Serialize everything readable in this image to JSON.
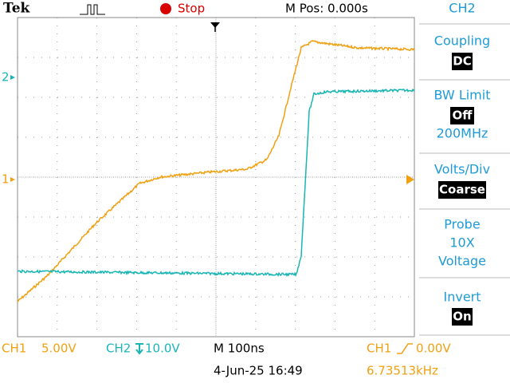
{
  "header": {
    "brand": "Tek",
    "status": "Stop",
    "position": "M Pos: 0.000s"
  },
  "menu": {
    "title": "CH2",
    "coupling": {
      "label": "Coupling",
      "value": "DC"
    },
    "bw_limit": {
      "label": "BW Limit",
      "value": "Off",
      "extra": "200MHz"
    },
    "volts_div": {
      "label": "Volts/Div",
      "value": "Coarse"
    },
    "probe": {
      "label": "Probe",
      "lines": [
        "10X",
        "Voltage"
      ]
    },
    "invert": {
      "label": "Invert",
      "value": "On"
    }
  },
  "markers": {
    "ch2": "2",
    "ch1": "1"
  },
  "footer": {
    "ch1": "CH1",
    "ch1_scale": "5.00V",
    "ch2": "CH2",
    "ch2_scale": "10.0V",
    "timebase": "M 100ns",
    "trigger_source": "CH1",
    "trigger_level": "0.00V",
    "date": "4-Jun-25 16:49",
    "frequency": "6.73513kHz"
  }
}
